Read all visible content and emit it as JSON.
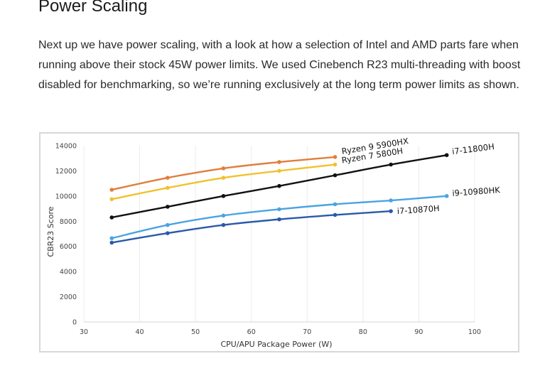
{
  "article": {
    "heading": "Power Scaling",
    "paragraph": "Next up we have power scaling, with a look at how a selection of Intel and AMD parts fare when running above their stock 45W power limits. We used Cinebench R23 multi-threading with boost disabled for benchmarking, so we’re running exclusively at the long term power limits as shown."
  },
  "chart_data": {
    "type": "line",
    "title": "",
    "xlabel": "CPU/APU Package Power (W)",
    "ylabel": "CBR23 Score",
    "xlim": [
      30,
      100
    ],
    "ylim": [
      0,
      14000
    ],
    "xticks": [
      30,
      40,
      50,
      60,
      70,
      80,
      90,
      100
    ],
    "yticks": [
      0,
      2000,
      4000,
      6000,
      8000,
      10000,
      12000,
      14000
    ],
    "grid": "vertical",
    "series": [
      {
        "name": "Ryzen 9 5900HX",
        "color": "#e07e3c",
        "x": [
          35,
          45,
          55,
          65,
          75
        ],
        "values": [
          10500,
          11450,
          12200,
          12700,
          13100
        ]
      },
      {
        "name": "Ryzen 7 5800H",
        "color": "#f2c12e",
        "x": [
          35,
          45,
          55,
          65,
          75
        ],
        "values": [
          9750,
          10650,
          11450,
          12000,
          12500
        ]
      },
      {
        "name": "i7-11800H",
        "color": "#111111",
        "x": [
          35,
          45,
          55,
          65,
          75,
          85,
          95
        ],
        "values": [
          8300,
          9150,
          10000,
          10800,
          11650,
          12500,
          13250
        ]
      },
      {
        "name": "i9-10980HK",
        "color": "#4ba3e3",
        "x": [
          35,
          45,
          55,
          65,
          75,
          85,
          95
        ],
        "values": [
          6650,
          7700,
          8450,
          8950,
          9350,
          9650,
          10000
        ]
      },
      {
        "name": "i7-10870H",
        "color": "#2a5aa8",
        "x": [
          35,
          45,
          55,
          65,
          75,
          85
        ],
        "values": [
          6300,
          7050,
          7700,
          8150,
          8500,
          8800
        ]
      }
    ]
  }
}
